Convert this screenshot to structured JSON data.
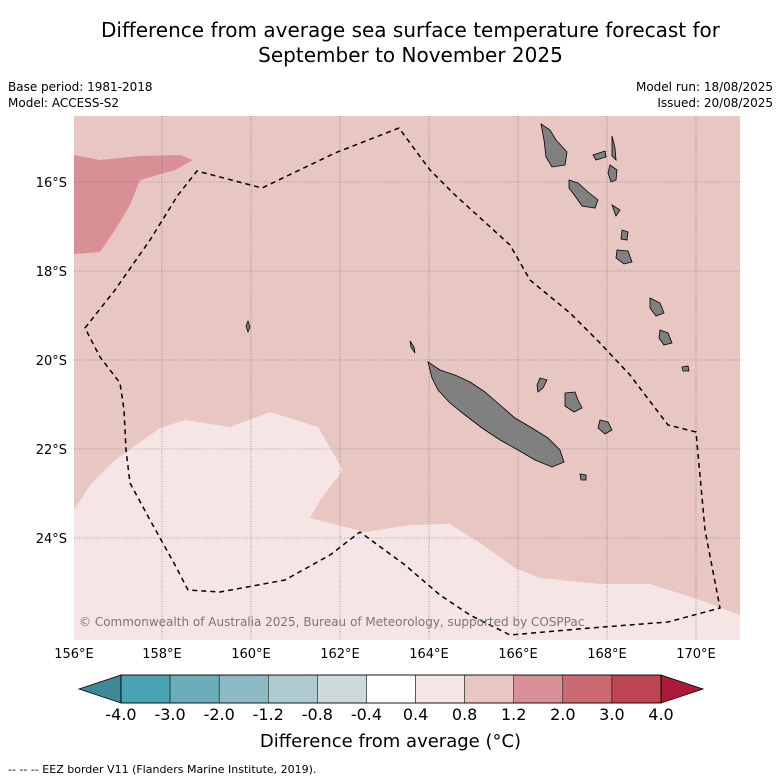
{
  "title_line1": "Difference from average sea surface temperature forecast for",
  "title_line2": "September to November 2025",
  "meta_left": [
    "Base period: 1981-2018",
    "Model: ACCESS-S2"
  ],
  "meta_right": [
    "Model run: 18/08/2025",
    "Issued: 20/08/2025"
  ],
  "copyright": "© Commonwealth of Australia 2025, Bureau of Meteorology, supported by COSPPac",
  "lon_labels": [
    "156°E",
    "158°E",
    "160°E",
    "162°E",
    "164°E",
    "166°E",
    "168°E",
    "170°E"
  ],
  "lat_labels": [
    "16°S",
    "18°S",
    "20°S",
    "22°S",
    "24°S"
  ],
  "colorbar": {
    "ticks": [
      "-4.0",
      "-3.0",
      "-2.0",
      "-1.2",
      "-0.8",
      "-0.4",
      "0.4",
      "0.8",
      "1.2",
      "2.0",
      "3.0",
      "4.0"
    ],
    "colors": [
      "#4aa3b3",
      "#6aaebb",
      "#8ebac4",
      "#adcbcf",
      "#ced9da",
      "#ffffff",
      "#f5e6e5",
      "#e8c6c2",
      "#d88f95",
      "#cc6a73",
      "#bf4452"
    ],
    "under_color": "#3d8a96",
    "over_color": "#ac1a3a",
    "label": "Difference from average (°C)"
  },
  "footnote": "-- -- -- EEZ border V11 (Flanders Marine Institute, 2019).",
  "map_colors": {
    "background_anomaly": "#e8c6c2",
    "warm_patch": "#d88f95",
    "cool_patch": "#f5e6e5",
    "land": "#808080"
  }
}
